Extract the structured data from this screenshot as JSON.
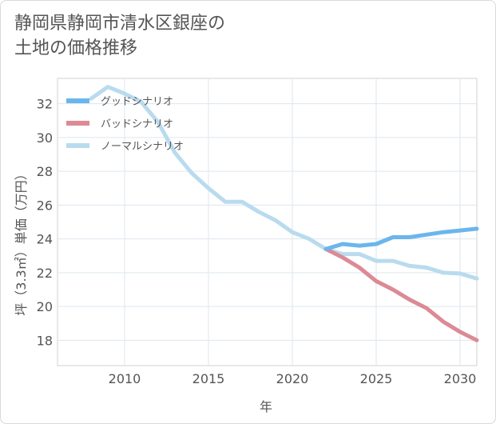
{
  "chart_data": {
    "type": "line",
    "title": "静岡県静岡市清水区銀座の\n土地の価格推移",
    "xlabel": "年",
    "ylabel": "坪（3.3㎡）単価（万円）",
    "xlim": [
      2006,
      2031
    ],
    "ylim": [
      16.5,
      33.5
    ],
    "xticks": [
      2010,
      2015,
      2020,
      2025,
      2030
    ],
    "yticks": [
      18,
      20,
      22,
      24,
      26,
      28,
      30,
      32
    ],
    "grid": true,
    "legend_position": "top-left",
    "series": [
      {
        "name": "グッドシナリオ",
        "color": "#6bb6ec",
        "x": [
          2022,
          2023,
          2024,
          2025,
          2026,
          2027,
          2028,
          2029,
          2030,
          2031
        ],
        "y": [
          23.4,
          23.7,
          23.6,
          23.7,
          24.1,
          24.1,
          24.25,
          24.4,
          24.5,
          24.6
        ]
      },
      {
        "name": "バッドシナリオ",
        "color": "#dc8a95",
        "x": [
          2022,
          2023,
          2024,
          2025,
          2026,
          2027,
          2028,
          2029,
          2030,
          2031
        ],
        "y": [
          23.4,
          22.9,
          22.3,
          21.5,
          21.0,
          20.4,
          19.9,
          19.1,
          18.5,
          18.0
        ]
      },
      {
        "name": "ノーマルシナリオ",
        "color": "#b9dbee",
        "x": [
          2008,
          2009,
          2010,
          2011,
          2012,
          2013,
          2014,
          2015,
          2016,
          2017,
          2018,
          2019,
          2020,
          2021,
          2022,
          2023,
          2024,
          2025,
          2026,
          2027,
          2028,
          2029,
          2030,
          2031
        ],
        "y": [
          32.3,
          33.0,
          32.6,
          32.1,
          30.9,
          29.1,
          27.9,
          27.0,
          26.2,
          26.2,
          25.6,
          25.1,
          24.4,
          24.0,
          23.4,
          23.1,
          23.1,
          22.7,
          22.7,
          22.4,
          22.3,
          22.0,
          21.95,
          21.65
        ]
      }
    ]
  }
}
